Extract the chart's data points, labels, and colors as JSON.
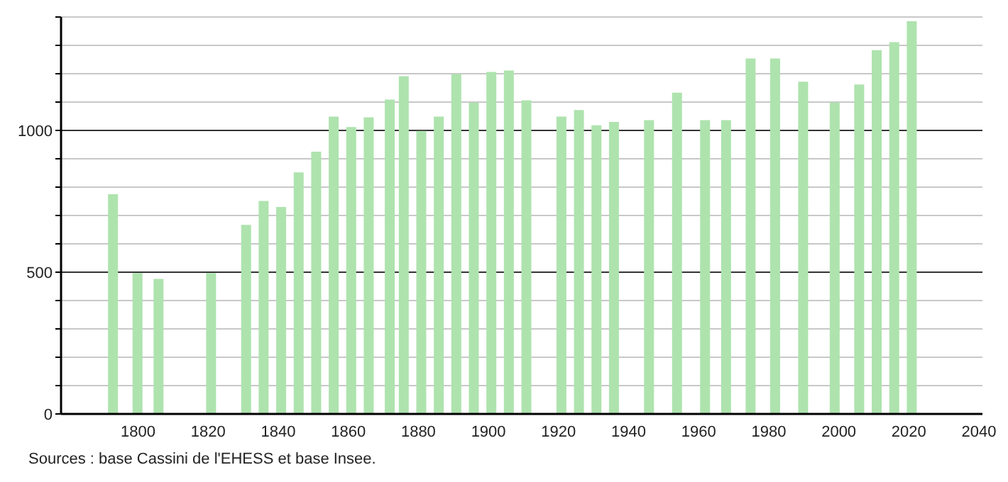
{
  "chart_data": {
    "type": "bar",
    "x": [
      1793,
      1800,
      1806,
      1821,
      1831,
      1836,
      1841,
      1846,
      1851,
      1856,
      1861,
      1866,
      1872,
      1876,
      1881,
      1886,
      1891,
      1896,
      1901,
      1906,
      1911,
      1921,
      1926,
      1931,
      1936,
      1946,
      1954,
      1962,
      1968,
      1975,
      1982,
      1990,
      1999,
      2006,
      2011,
      2016,
      2021
    ],
    "values": [
      775,
      497,
      476,
      497,
      667,
      751,
      730,
      852,
      925,
      1049,
      1012,
      1046,
      1109,
      1191,
      998,
      1049,
      1199,
      1098,
      1206,
      1211,
      1106,
      1049,
      1072,
      1018,
      1030,
      1036,
      1133,
      1036,
      1036,
      1254,
      1254,
      1172,
      1099,
      1162,
      1283,
      1311,
      1385
    ],
    "color": "#aee3ae",
    "xlim": [
      1778,
      2041
    ],
    "xticks": [
      1800,
      1820,
      1840,
      1860,
      1880,
      1900,
      1920,
      1940,
      1960,
      1980,
      2000,
      2020,
      2040
    ],
    "ylim": [
      0,
      1400
    ],
    "yticks": [
      0,
      {
        "value": 100,
        "label": null
      },
      {
        "value": 200,
        "label": null
      },
      {
        "value": 300,
        "label": null
      },
      {
        "value": 400,
        "label": null
      },
      500,
      {
        "value": 600,
        "label": null
      },
      {
        "value": 700,
        "label": null
      },
      {
        "value": 800,
        "label": null
      },
      {
        "value": 900,
        "label": null
      },
      1000,
      {
        "value": 1100,
        "label": null
      },
      {
        "value": 1200,
        "label": null
      },
      {
        "value": 1300,
        "label": null
      },
      {
        "value": 1400,
        "label": null
      }
    ],
    "grid": "y",
    "annotations": [
      "Sources : base Cassini de l'EHESS et base Insee."
    ]
  }
}
